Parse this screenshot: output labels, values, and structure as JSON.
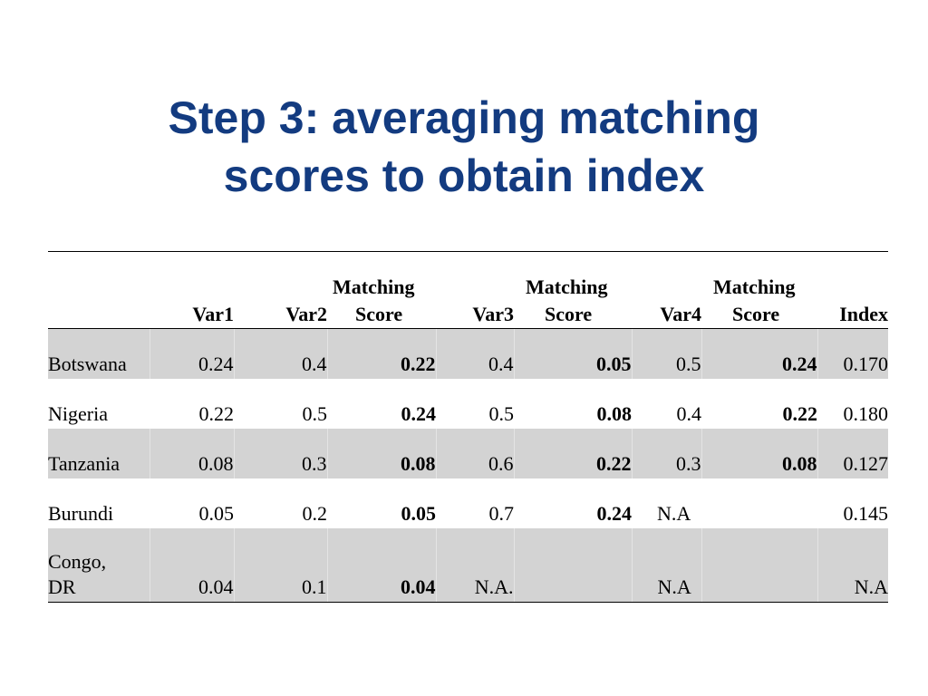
{
  "title": {
    "line1": "Step 3: averaging matching",
    "line2": "scores to obtain index"
  },
  "table": {
    "headers": [
      {
        "line1": "",
        "line2": ""
      },
      {
        "line1": "",
        "line2": "Var1"
      },
      {
        "line1": "",
        "line2": "Var2"
      },
      {
        "line1": "Matching",
        "line2": "Score"
      },
      {
        "line1": "",
        "line2": "Var3"
      },
      {
        "line1": "Matching",
        "line2": "Score"
      },
      {
        "line1": "",
        "line2": "Var4"
      },
      {
        "line1": "Matching",
        "line2": "Score"
      },
      {
        "line1": "",
        "line2": "Index"
      }
    ],
    "rows": [
      {
        "country_line1": "Botswana",
        "country_line2": "",
        "var1": "0.24",
        "var2": "0.4",
        "score2": "0.22",
        "var3": "0.4",
        "score3": "0.05",
        "var4": "0.5",
        "score4": "0.24",
        "index": "0.170"
      },
      {
        "country_line1": "Nigeria",
        "country_line2": "",
        "var1": "0.22",
        "var2": "0.5",
        "score2": "0.24",
        "var3": "0.5",
        "score3": "0.08",
        "var4": "0.4",
        "score4": "0.22",
        "index": "0.180"
      },
      {
        "country_line1": "Tanzania",
        "country_line2": "",
        "var1": "0.08",
        "var2": "0.3",
        "score2": "0.08",
        "var3": "0.6",
        "score3": "0.22",
        "var4": "0.3",
        "score4": "0.08",
        "index": "0.127"
      },
      {
        "country_line1": "Burundi",
        "country_line2": "",
        "var1": "0.05",
        "var2": "0.2",
        "score2": "0.05",
        "var3": "0.7",
        "score3": "0.24",
        "var4": "N.A",
        "score4": "",
        "index": "0.145"
      },
      {
        "country_line1": "Congo,",
        "country_line2": "DR",
        "var1": "0.04",
        "var2": "0.1",
        "score2": "0.04",
        "var3": "N.A.",
        "score3": "",
        "var4": "N.A",
        "score4": "",
        "index": "N.A"
      }
    ]
  }
}
